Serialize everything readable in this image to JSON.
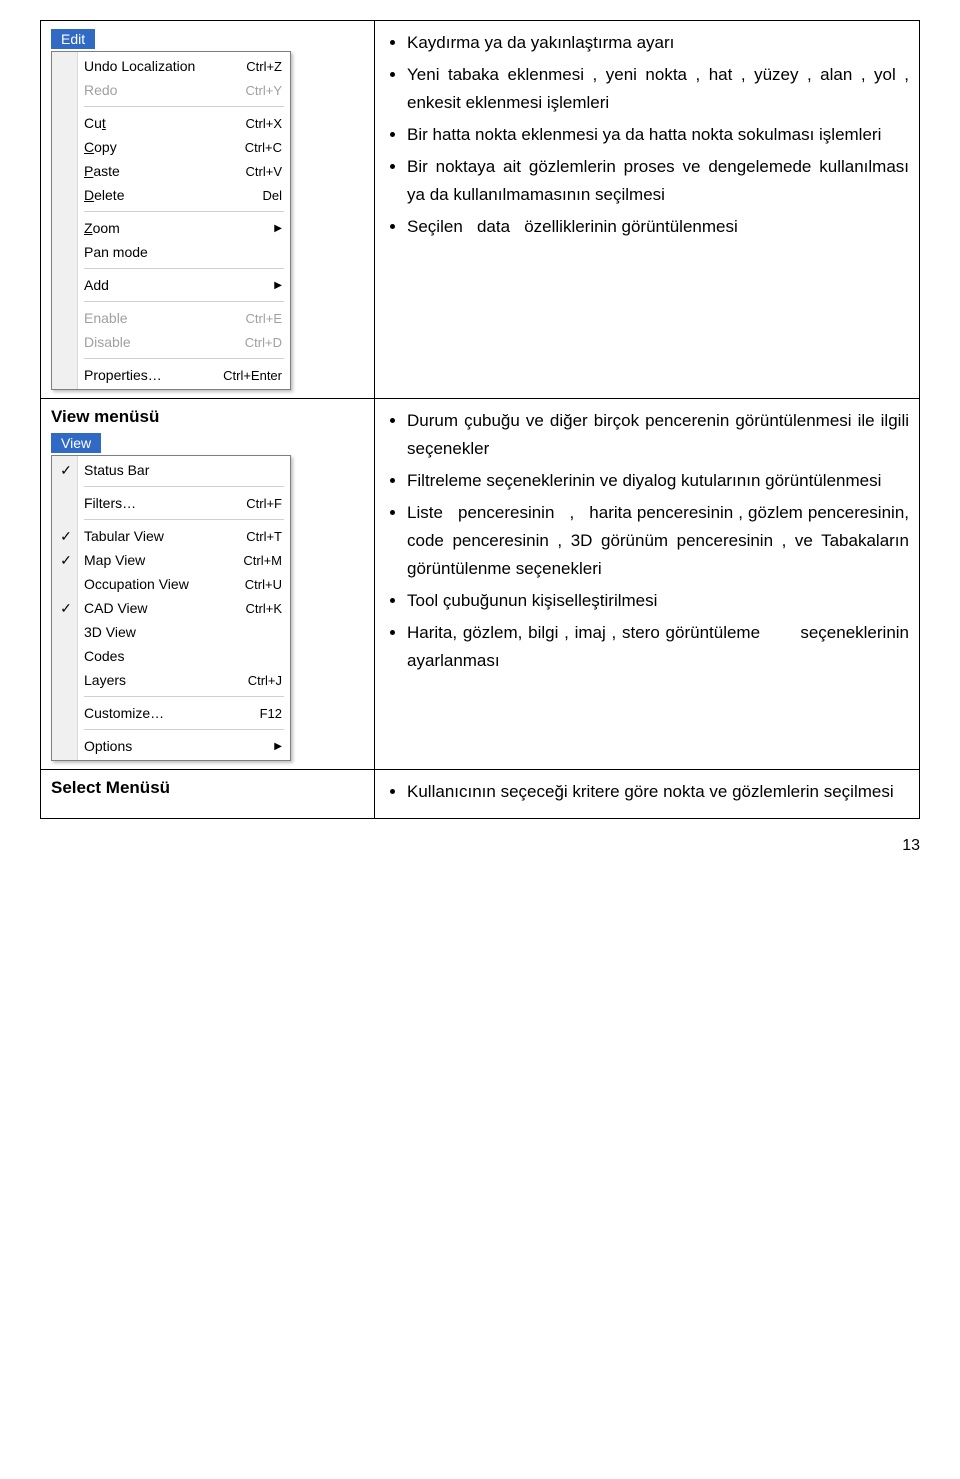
{
  "colors": {
    "highlight_bg": "#316ac5",
    "highlight_fg": "#ffffff",
    "menu_border": "#7f7f7f",
    "menu_gutter": "#f0f0f0",
    "disabled": "#a0a0a0",
    "sep": "#d0d0d0"
  },
  "row1": {
    "menu_label": "Edit",
    "menu_items": [
      {
        "label": "Undo Localization",
        "shortcut": "Ctrl+Z",
        "type": "item"
      },
      {
        "label": "Redo",
        "shortcut": "Ctrl+Y",
        "type": "item",
        "disabled": true
      },
      {
        "type": "sep"
      },
      {
        "label": "Cut",
        "mnemonic": "t",
        "shortcut": "Ctrl+X",
        "type": "item"
      },
      {
        "label": "Copy",
        "mnemonic": "C",
        "shortcut": "Ctrl+C",
        "type": "item"
      },
      {
        "label": "Paste",
        "mnemonic": "P",
        "shortcut": "Ctrl+V",
        "type": "item"
      },
      {
        "label": "Delete",
        "mnemonic": "D",
        "shortcut": "Del",
        "type": "item"
      },
      {
        "type": "sep"
      },
      {
        "label": "Zoom",
        "mnemonic": "Z",
        "submenu": true,
        "type": "item"
      },
      {
        "label": "Pan mode",
        "type": "item"
      },
      {
        "type": "sep"
      },
      {
        "label": "Add",
        "submenu": true,
        "type": "item"
      },
      {
        "type": "sep"
      },
      {
        "label": "Enable",
        "shortcut": "Ctrl+E",
        "type": "item",
        "disabled": true
      },
      {
        "label": "Disable",
        "shortcut": "Ctrl+D",
        "type": "item",
        "disabled": true
      },
      {
        "type": "sep"
      },
      {
        "label": "Properties…",
        "shortcut": "Ctrl+Enter",
        "type": "item"
      }
    ],
    "bullets_html": [
      "Kaydırma ya da yakınlaştırma ayarı",
      "Yeni tabaka eklenmesi , yeni nokta , hat , yüzey , alan , yol , enkesit eklenmesi işlemleri",
      "Bir hatta nokta eklenmesi ya da hatta nokta sokulması işlemleri",
      "Bir noktaya ait gözlemlerin proses ve dengelemede kullanılması ya da kullanılmamasının seçilmesi",
      "Seçilen&nbsp;&nbsp;&nbsp;data&nbsp;&nbsp;&nbsp;özelliklerinin görüntülenmesi"
    ]
  },
  "row2": {
    "heading": "View  menüsü",
    "menu_label": "View",
    "menu_items": [
      {
        "label": "Status Bar",
        "checked": true,
        "type": "item"
      },
      {
        "type": "sep"
      },
      {
        "label": "Filters…",
        "shortcut": "Ctrl+F",
        "type": "item"
      },
      {
        "type": "sep"
      },
      {
        "label": "Tabular View",
        "shortcut": "Ctrl+T",
        "checked": true,
        "type": "item"
      },
      {
        "label": "Map View",
        "shortcut": "Ctrl+M",
        "checked": true,
        "type": "item"
      },
      {
        "label": "Occupation View",
        "shortcut": "Ctrl+U",
        "type": "item"
      },
      {
        "label": "CAD View",
        "shortcut": "Ctrl+K",
        "checked": true,
        "type": "item"
      },
      {
        "label": "3D View",
        "type": "item"
      },
      {
        "label": "Codes",
        "type": "item"
      },
      {
        "label": "Layers",
        "shortcut": "Ctrl+J",
        "type": "item"
      },
      {
        "type": "sep"
      },
      {
        "label": "Customize…",
        "shortcut": "F12",
        "type": "item"
      },
      {
        "type": "sep"
      },
      {
        "label": "Options",
        "submenu": true,
        "type": "item"
      }
    ],
    "bullets_html": [
      "Durum çubuğu ve diğer birçok pencerenin görüntülenmesi ile ilgili seçenekler",
      "Filtreleme seçeneklerinin ve diyalog kutularının görüntülenmesi",
      "Liste&nbsp;&nbsp;&nbsp;penceresinin&nbsp;&nbsp;&nbsp;,&nbsp;&nbsp;&nbsp;harita penceresinin , gözlem penceresinin, code penceresinin , 3D görünüm penceresinin , ve Tabakaların görüntülenme seçenekleri",
      "Tool çubuğunun kişiselleştirilmesi",
      "Harita, gözlem, bilgi , imaj , stero görüntüleme&nbsp;&nbsp;&nbsp;&nbsp;&nbsp;&nbsp;&nbsp;seçeneklerinin ayarlanması"
    ]
  },
  "row3": {
    "heading": "Select Menüsü",
    "bullets_html": [
      "Kullanıcının seçeceği kritere göre nokta ve  gözlemlerin seçilmesi"
    ]
  },
  "page_number": "13"
}
